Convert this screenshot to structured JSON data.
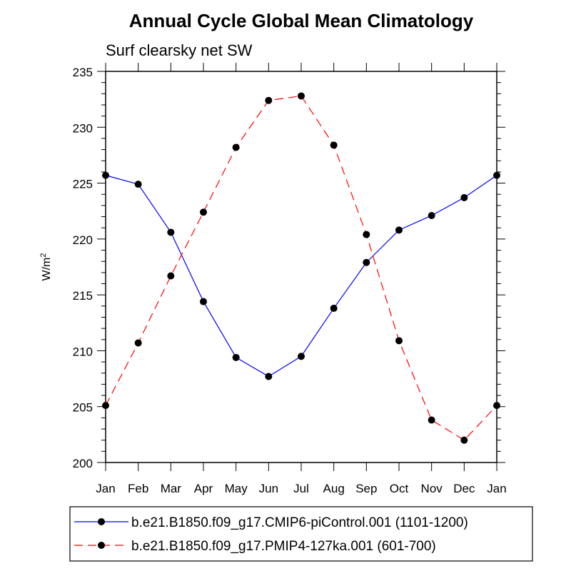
{
  "chart_data": {
    "type": "line",
    "title": "Annual Cycle Global Mean Climatology",
    "subtitle": "Surf clearsky net SW",
    "ylabel": "W/m",
    "ylabel_sup": "2",
    "xlabel": "",
    "categories": [
      "Jan",
      "Feb",
      "Mar",
      "Apr",
      "May",
      "Jun",
      "Jul",
      "Aug",
      "Sep",
      "Oct",
      "Nov",
      "Dec",
      "Jan"
    ],
    "ylim": [
      200,
      235
    ],
    "yticks": [
      200,
      205,
      210,
      215,
      220,
      225,
      230,
      235
    ],
    "series": [
      {
        "name": "b.e21.B1850.f09_g17.CMIP6-piControl.001 (1101-1200)",
        "color": "#0000ff",
        "dash": "solid",
        "values": [
          225.7,
          224.9,
          220.6,
          214.4,
          209.4,
          207.7,
          209.5,
          213.8,
          217.9,
          220.8,
          222.1,
          223.7,
          225.7
        ]
      },
      {
        "name": "b.e21.B1850.f09_g17.PMIP4-127ka.001 (601-700)",
        "color": "#ff0000",
        "dash": "dashed",
        "values": [
          205.1,
          210.7,
          216.7,
          222.4,
          228.2,
          232.4,
          232.8,
          228.4,
          220.4,
          210.9,
          203.8,
          202.0,
          205.1
        ]
      }
    ],
    "legend": "bottom"
  }
}
